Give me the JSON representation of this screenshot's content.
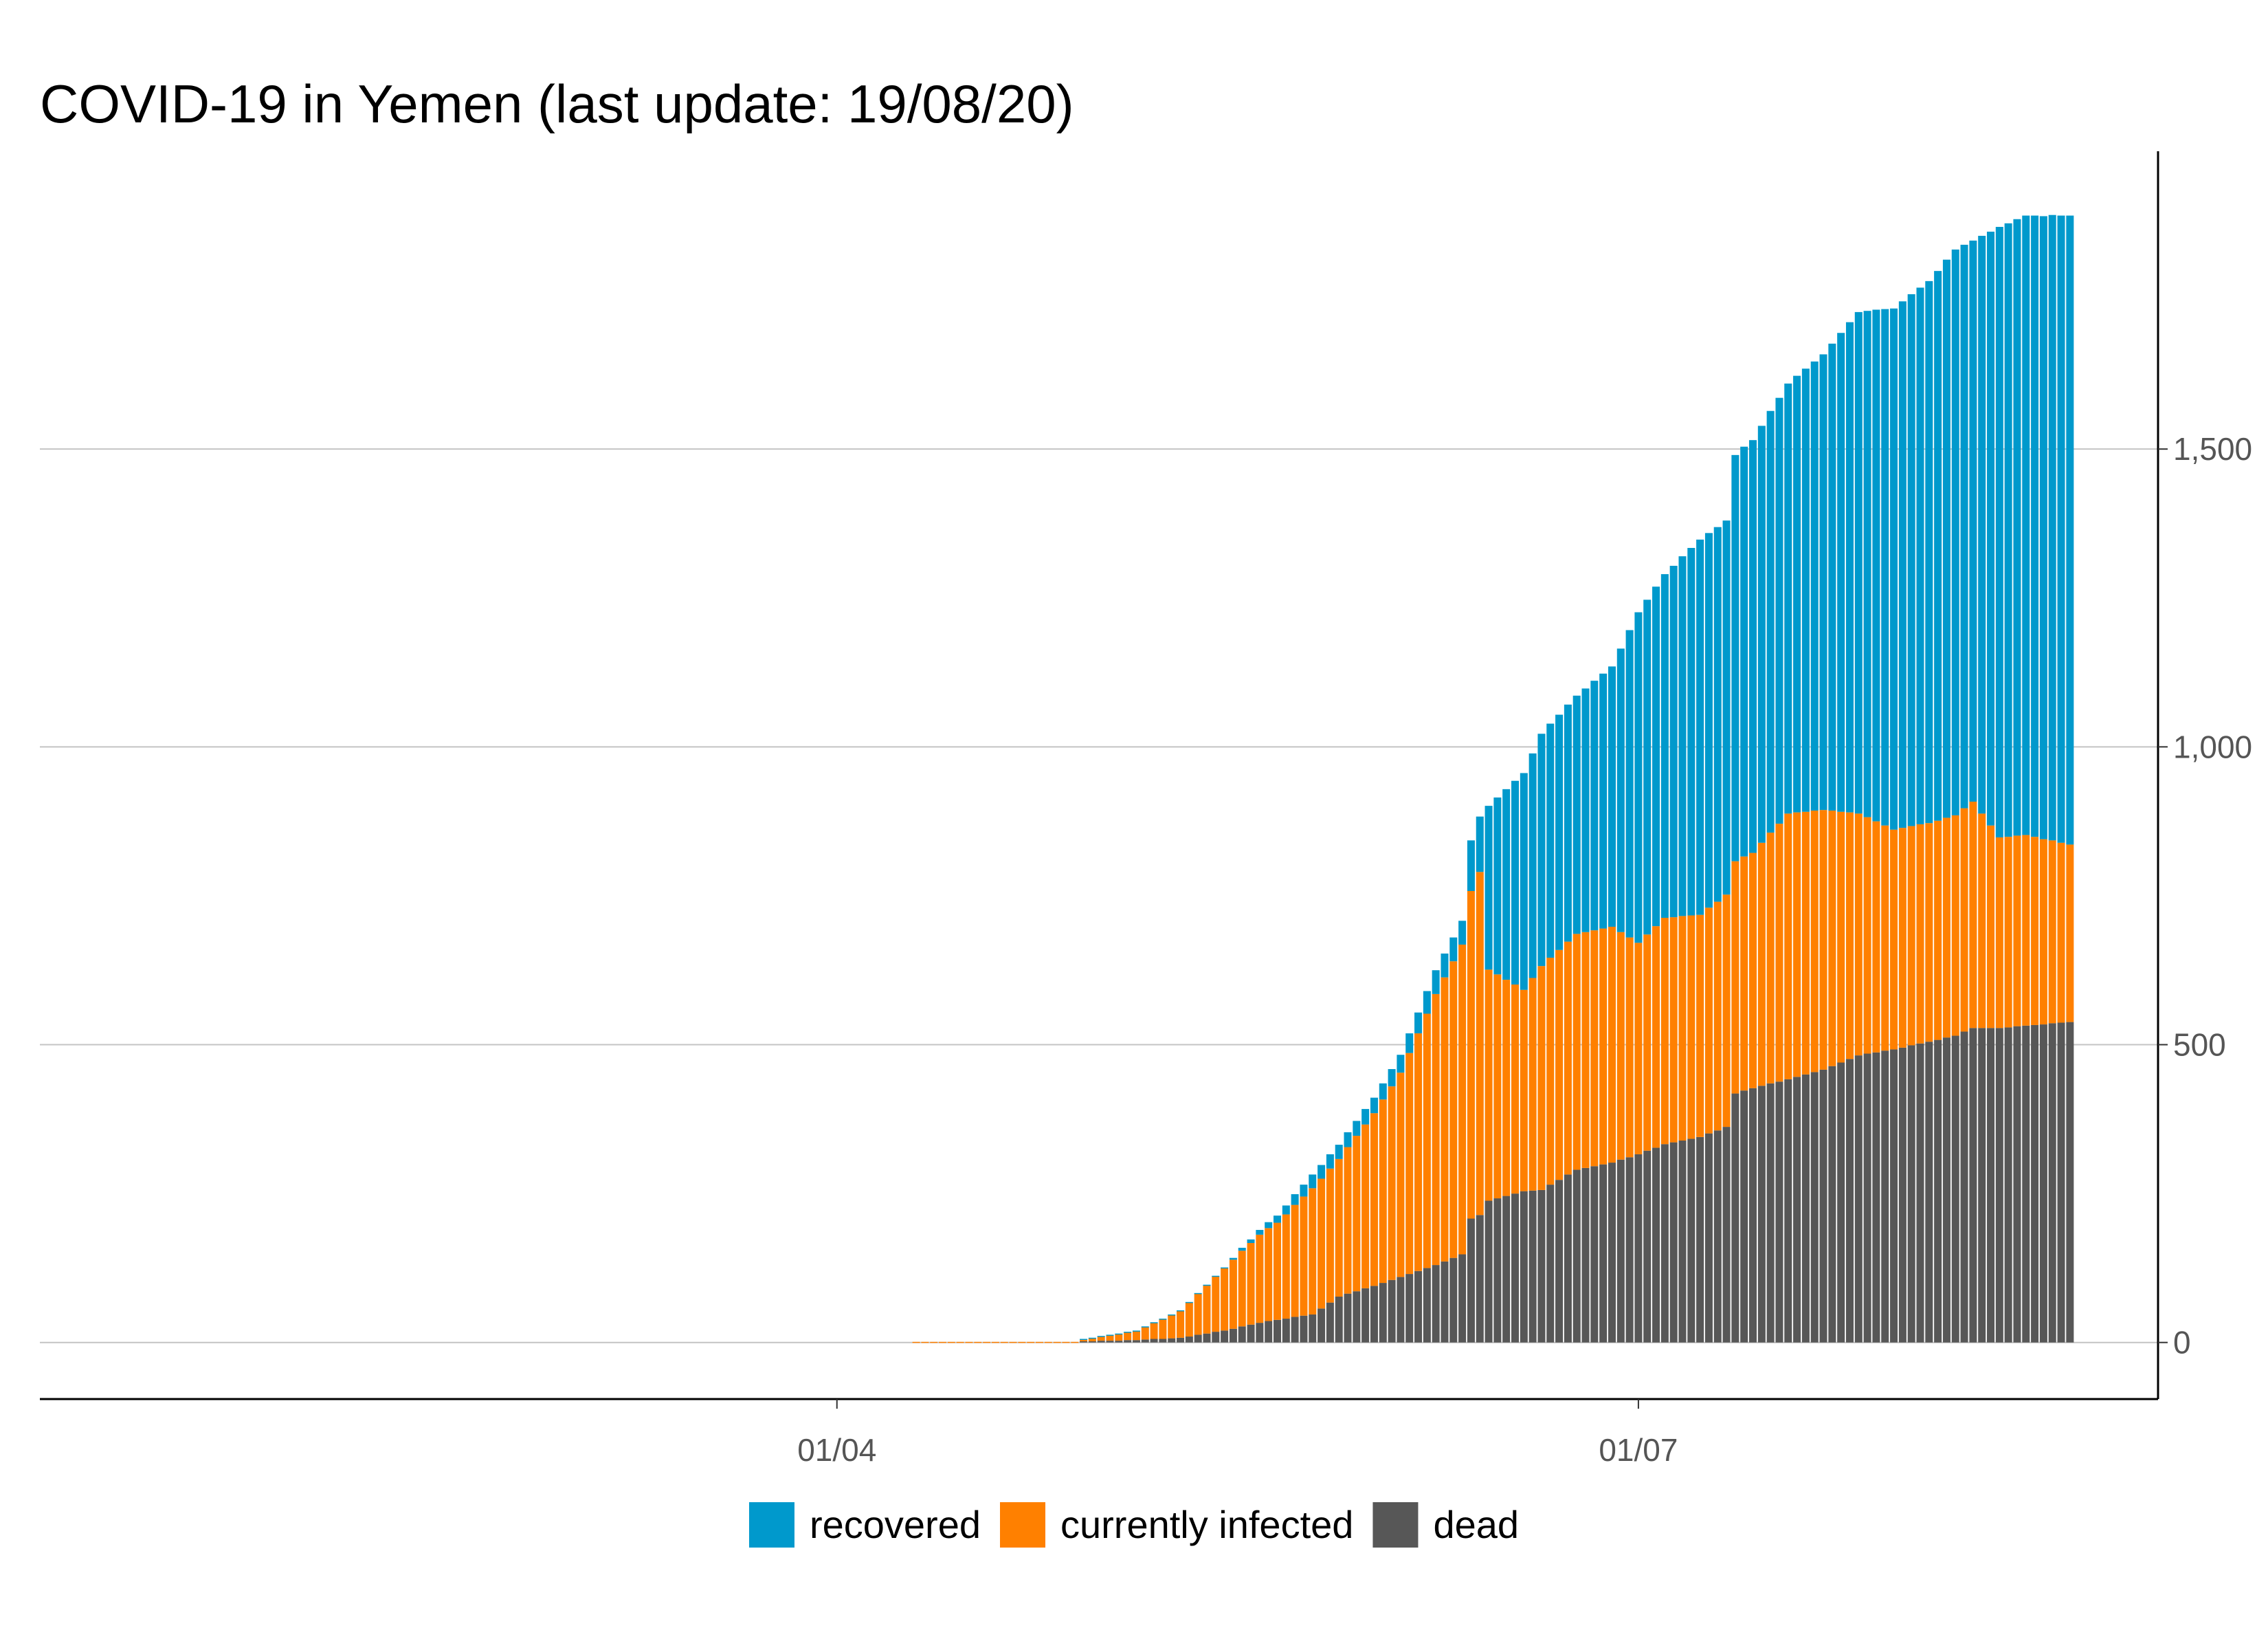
{
  "chart_data": {
    "type": "bar",
    "stacked": true,
    "title": "COVID-19 in Yemen (last update: 19/08/20)",
    "xlabel": "",
    "ylabel": "",
    "x_range": [
      "2020-01-22",
      "2020-08-19"
    ],
    "x_ticks": [
      {
        "date": "2020-04-01",
        "label": "01/04"
      },
      {
        "date": "2020-07-01",
        "label": "01/07"
      }
    ],
    "ylim": [
      -95,
      2000
    ],
    "y_ticks": [
      {
        "value": 0,
        "label": "0"
      },
      {
        "value": 500,
        "label": "500"
      },
      {
        "value": 1000,
        "label": "1,000"
      },
      {
        "value": 1500,
        "label": "1,500"
      }
    ],
    "y_axis_position": "right",
    "grid": true,
    "legend_position": "bottom",
    "colors": {
      "recovered": "#0099cc",
      "currently_infected": "#ff8000",
      "dead": "#575757"
    },
    "legend": [
      {
        "key": "recovered",
        "label": "recovered",
        "color": "#0099cc"
      },
      {
        "key": "currently_infected",
        "label": "currently infected",
        "color": "#ff8000"
      },
      {
        "key": "dead",
        "label": "dead",
        "color": "#575757"
      }
    ],
    "series_order_bottom_to_top": [
      "dead",
      "currently_infected",
      "recovered"
    ],
    "keypoints": [
      {
        "date": "2020-04-10",
        "dead": 0,
        "infected": 1,
        "recovered": 0
      },
      {
        "date": "2020-04-28",
        "dead": 0,
        "infected": 1,
        "recovered": 0
      },
      {
        "date": "2020-04-29",
        "dead": 2,
        "infected": 3,
        "recovered": 1
      },
      {
        "date": "2020-05-05",
        "dead": 4,
        "infected": 15,
        "recovered": 1
      },
      {
        "date": "2020-05-10",
        "dead": 8,
        "infected": 45,
        "recovered": 1
      },
      {
        "date": "2020-05-15",
        "dead": 20,
        "infected": 105,
        "recovered": 1
      },
      {
        "date": "2020-05-19",
        "dead": 33,
        "infected": 148,
        "recovered": 8
      },
      {
        "date": "2020-05-21",
        "dead": 38,
        "infected": 163,
        "recovered": 12
      },
      {
        "date": "2020-05-25",
        "dead": 47,
        "infected": 212,
        "recovered": 23
      },
      {
        "date": "2020-05-28",
        "dead": 77,
        "infected": 231,
        "recovered": 24
      },
      {
        "date": "2020-06-01",
        "dead": 95,
        "infected": 290,
        "recovered": 26
      },
      {
        "date": "2020-06-04",
        "dead": 110,
        "infected": 343,
        "recovered": 30
      },
      {
        "date": "2020-06-08",
        "dead": 130,
        "infected": 455,
        "recovered": 40
      },
      {
        "date": "2020-06-11",
        "dead": 148,
        "infected": 520,
        "recovered": 40
      },
      {
        "date": "2020-06-12",
        "dead": 208,
        "infected": 550,
        "recovered": 85
      },
      {
        "date": "2020-06-13",
        "dead": 214,
        "infected": 576,
        "recovered": 93
      },
      {
        "date": "2020-06-14",
        "dead": 238,
        "infected": 388,
        "recovered": 275
      },
      {
        "date": "2020-06-18",
        "dead": 254,
        "infected": 338,
        "recovered": 364
      },
      {
        "date": "2020-06-20",
        "dead": 256,
        "infected": 376,
        "recovered": 390
      },
      {
        "date": "2020-06-24",
        "dead": 290,
        "infected": 396,
        "recovered": 400
      },
      {
        "date": "2020-06-28",
        "dead": 302,
        "infected": 396,
        "recovered": 437
      },
      {
        "date": "2020-07-01",
        "dead": 316,
        "infected": 355,
        "recovered": 555
      },
      {
        "date": "2020-07-04",
        "dead": 333,
        "infected": 380,
        "recovered": 577
      },
      {
        "date": "2020-07-08",
        "dead": 345,
        "infected": 373,
        "recovered": 630
      },
      {
        "date": "2020-07-11",
        "dead": 362,
        "infected": 390,
        "recovered": 628
      },
      {
        "date": "2020-07-12",
        "dead": 418,
        "infected": 390,
        "recovered": 682
      },
      {
        "date": "2020-07-14",
        "dead": 427,
        "infected": 395,
        "recovered": 693
      },
      {
        "date": "2020-07-18",
        "dead": 442,
        "infected": 446,
        "recovered": 722
      },
      {
        "date": "2020-07-22",
        "dead": 458,
        "infected": 436,
        "recovered": 765
      },
      {
        "date": "2020-07-26",
        "dead": 482,
        "infected": 406,
        "recovered": 842
      },
      {
        "date": "2020-07-30",
        "dead": 492,
        "infected": 369,
        "recovered": 875
      },
      {
        "date": "2020-08-03",
        "dead": 505,
        "infected": 367,
        "recovered": 910
      },
      {
        "date": "2020-08-06",
        "dead": 515,
        "infected": 370,
        "recovered": 950
      },
      {
        "date": "2020-08-08",
        "dead": 528,
        "infected": 380,
        "recovered": 942
      },
      {
        "date": "2020-08-11",
        "dead": 528,
        "infected": 320,
        "recovered": 1025
      },
      {
        "date": "2020-08-14",
        "dead": 532,
        "infected": 320,
        "recovered": 1040
      },
      {
        "date": "2020-08-19",
        "dead": 538,
        "infected": 298,
        "recovered": 1056
      }
    ]
  }
}
